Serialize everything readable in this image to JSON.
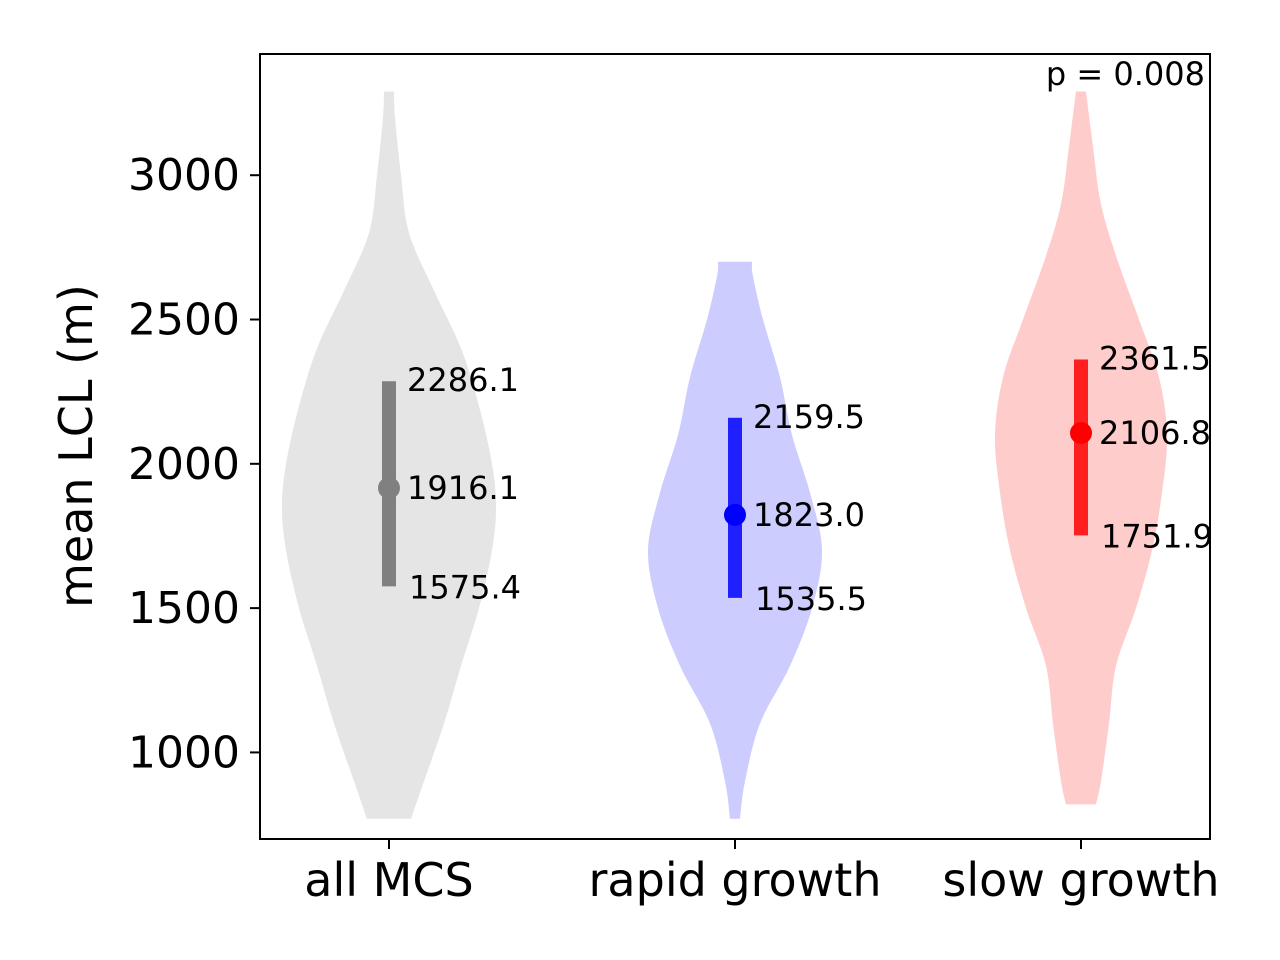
{
  "chart_data": {
    "type": "violin",
    "title": "",
    "xlabel": "",
    "ylabel": "mean LCL (m)",
    "ylim": [
      700,
      3420
    ],
    "yticks": [
      1000,
      1500,
      2000,
      2500,
      3000
    ],
    "categories": [
      "all MCS",
      "rapid growth",
      "slow growth"
    ],
    "annotation": "p = 0.008",
    "grid": false,
    "legend": "none",
    "series": [
      {
        "category": "all MCS",
        "color": "#808080",
        "fill": "#e5e5e5",
        "median": 1916.1,
        "q1": 1575.4,
        "q3": 2286.1,
        "median_label": "1916.1",
        "q1_label": "1575.4",
        "q3_label": "2286.1",
        "min": 770,
        "max": 3290,
        "density": [
          [
            770,
            22
          ],
          [
            900,
            35
          ],
          [
            1100,
            55
          ],
          [
            1300,
            72
          ],
          [
            1500,
            90
          ],
          [
            1700,
            103
          ],
          [
            1850,
            107
          ],
          [
            2000,
            103
          ],
          [
            2200,
            90
          ],
          [
            2400,
            72
          ],
          [
            2600,
            45
          ],
          [
            2800,
            20
          ],
          [
            3000,
            12
          ],
          [
            3200,
            6
          ],
          [
            3290,
            5
          ]
        ]
      },
      {
        "category": "rapid growth",
        "color": "#0000ff",
        "fill": "#ccccff",
        "median": 1823.0,
        "q1": 1535.5,
        "q3": 2159.5,
        "median_label": "1823.0",
        "q1_label": "1535.5",
        "q3_label": "2159.5",
        "min": 770,
        "max": 2700,
        "density": [
          [
            770,
            5
          ],
          [
            900,
            10
          ],
          [
            1100,
            25
          ],
          [
            1300,
            55
          ],
          [
            1500,
            77
          ],
          [
            1700,
            87
          ],
          [
            1900,
            75
          ],
          [
            2100,
            57
          ],
          [
            2300,
            45
          ],
          [
            2500,
            28
          ],
          [
            2650,
            18
          ],
          [
            2700,
            17
          ]
        ]
      },
      {
        "category": "slow growth",
        "color": "#ff0000",
        "fill": "#ffcccc",
        "median": 2106.8,
        "q1": 1751.9,
        "q3": 2361.5,
        "median_label": "2106.8",
        "q1_label": "1751.9",
        "q3_label": "2361.5",
        "min": 820,
        "max": 3290,
        "density": [
          [
            820,
            15
          ],
          [
            900,
            20
          ],
          [
            1100,
            28
          ],
          [
            1300,
            35
          ],
          [
            1500,
            55
          ],
          [
            1700,
            71
          ],
          [
            1900,
            81
          ],
          [
            2100,
            86
          ],
          [
            2300,
            78
          ],
          [
            2500,
            58
          ],
          [
            2700,
            37
          ],
          [
            2900,
            20
          ],
          [
            3100,
            12
          ],
          [
            3290,
            5
          ]
        ]
      }
    ]
  }
}
